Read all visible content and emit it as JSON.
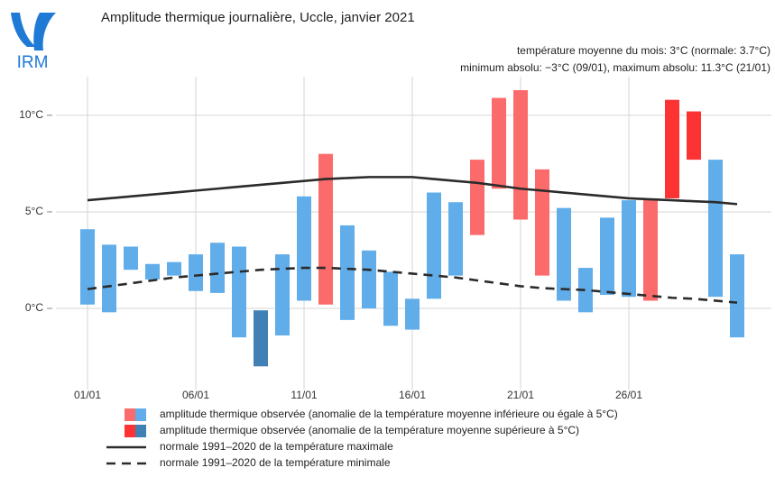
{
  "chart_data": {
    "type": "range_bar",
    "logo": "IRM",
    "title": "Amplitude thermique journalière, Uccle, janvier 2021",
    "subtitle": [
      "température moyenne du mois: 3°C (normale: 3.7°C)",
      "minimum absolu: −3°C (09/01), maximum absolu: 11.3°C (21/01)"
    ],
    "categories": [
      "01/01",
      null,
      null,
      null,
      null,
      "06/01",
      null,
      null,
      null,
      null,
      "11/01",
      null,
      null,
      null,
      null,
      "16/01",
      null,
      null,
      null,
      null,
      "21/01",
      null,
      null,
      null,
      null,
      "26/01",
      null,
      null,
      null,
      null,
      null
    ],
    "ylim": [
      -4.2,
      12
    ],
    "yticks": [
      {
        "value": 0,
        "label": "0°C"
      },
      {
        "value": 5,
        "label": "5°C"
      },
      {
        "value": 10,
        "label": "10°C"
      }
    ],
    "grid": true,
    "bars": {
      "min": [
        0.2,
        -0.2,
        2.0,
        1.5,
        1.7,
        0.9,
        0.8,
        -1.5,
        -3.0,
        -1.4,
        0.4,
        0.2,
        -0.6,
        0.0,
        -0.9,
        -1.1,
        0.5,
        1.7,
        3.8,
        6.2,
        4.6,
        1.7,
        0.4,
        -0.2,
        0.7,
        0.6,
        0.4,
        5.7,
        7.7,
        0.6,
        -1.5
      ],
      "max": [
        4.1,
        3.3,
        3.2,
        2.3,
        2.4,
        2.8,
        3.4,
        3.2,
        -0.1,
        2.8,
        5.8,
        8.0,
        4.3,
        3.0,
        1.9,
        0.5,
        6.0,
        5.5,
        7.7,
        10.9,
        11.3,
        7.2,
        5.2,
        2.1,
        4.7,
        5.6,
        5.7,
        10.8,
        10.2,
        7.7,
        2.8
      ],
      "colors": [
        "#60adea",
        "#60adea",
        "#60adea",
        "#60adea",
        "#60adea",
        "#60adea",
        "#60adea",
        "#60adea",
        "#4180b5",
        "#60adea",
        "#60adea",
        "#fb6b6b",
        "#60adea",
        "#60adea",
        "#60adea",
        "#60adea",
        "#60adea",
        "#60adea",
        "#fb6b6b",
        "#fb6b6b",
        "#fb6b6b",
        "#fb6b6b",
        "#60adea",
        "#60adea",
        "#60adea",
        "#60adea",
        "#fb6b6b",
        "#fd3232",
        "#fd3232",
        "#60adea",
        "#60adea"
      ]
    },
    "legend": [
      {
        "name": "amplitude thermique observée (anomalie de la température moyenne inférieure ou égale à 5°C)",
        "colors": [
          "#fb6b6b",
          "#60adea"
        ]
      },
      {
        "name": "amplitude thermique observée (anomalie de la température moyenne supérieure à 5°C)",
        "colors": [
          "#fd3232",
          "#4180b5"
        ]
      }
    ],
    "series": [
      {
        "name": "normale 1991–2020 de la température maximale",
        "color": "#2b2b2b",
        "dashed": false,
        "values": [
          5.6,
          5.7,
          5.8,
          5.9,
          6.0,
          6.1,
          6.2,
          6.3,
          6.4,
          6.5,
          6.6,
          6.7,
          6.75,
          6.8,
          6.8,
          6.8,
          6.7,
          6.6,
          6.5,
          6.35,
          6.2,
          6.1,
          6.0,
          5.9,
          5.8,
          5.7,
          5.65,
          5.6,
          5.55,
          5.5,
          5.4
        ]
      },
      {
        "name": "normale 1991–2020 de la température minimale",
        "color": "#2b2b2b",
        "dashed": true,
        "values": [
          1.0,
          1.15,
          1.3,
          1.45,
          1.6,
          1.7,
          1.8,
          1.9,
          2.0,
          2.05,
          2.1,
          2.1,
          2.05,
          2.0,
          1.9,
          1.8,
          1.7,
          1.6,
          1.45,
          1.3,
          1.15,
          1.05,
          1.0,
          0.95,
          0.85,
          0.75,
          0.65,
          0.55,
          0.5,
          0.4,
          0.3
        ]
      }
    ]
  }
}
